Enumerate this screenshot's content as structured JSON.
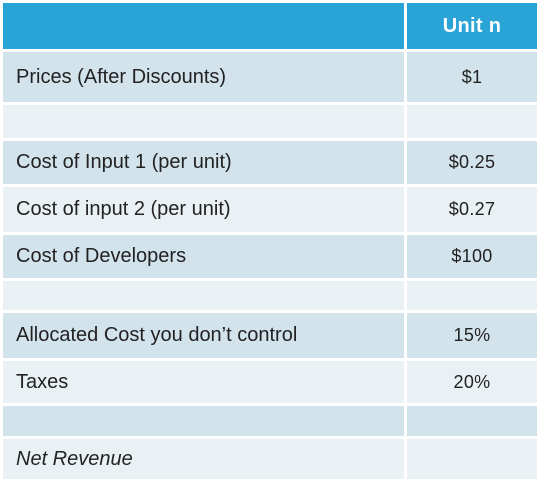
{
  "table": {
    "header": {
      "label": "",
      "value": "Unit n"
    },
    "rows": [
      {
        "label": "Prices (After Discounts)",
        "value": "$1"
      },
      {
        "label": "",
        "value": ""
      },
      {
        "label": "Cost of Input 1 (per unit)",
        "value": "$0.25"
      },
      {
        "label": "Cost of input 2 (per unit)",
        "value": "$0.27"
      },
      {
        "label": "Cost of Developers",
        "value": "$100"
      },
      {
        "label": "",
        "value": ""
      },
      {
        "label": "Allocated Cost you don’t control",
        "value": "15%"
      },
      {
        "label": "Taxes",
        "value": "20%"
      },
      {
        "label": "",
        "value": ""
      },
      {
        "label": "Net Revenue",
        "value": ""
      }
    ]
  },
  "colors": {
    "header": "#2aa3d6",
    "row_dark": "#d3e3ec",
    "row_light": "#eaf1f5"
  }
}
